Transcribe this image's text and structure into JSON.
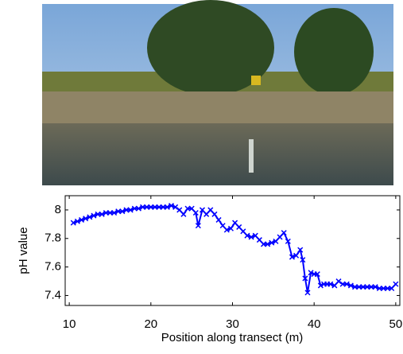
{
  "chart_data": {
    "type": "line",
    "xlabel": "Position along transect (m)",
    "ylabel": "pH value",
    "x": [
      10.5,
      11,
      11.5,
      12,
      12.5,
      13,
      13.5,
      14,
      14.5,
      15,
      15.5,
      16,
      16.5,
      17,
      17.5,
      18,
      18.5,
      19,
      19.5,
      20,
      20.5,
      21,
      21.5,
      22,
      22.5,
      23,
      23.5,
      24,
      24.5,
      25,
      25.5,
      25.8,
      26.3,
      26.8,
      27.3,
      27.8,
      28.3,
      28.8,
      29.3,
      29.8,
      30.3,
      30.8,
      31.3,
      31.8,
      32.3,
      32.8,
      33.3,
      33.8,
      34.3,
      34.8,
      35.3,
      35.8,
      36.3,
      36.8,
      37.3,
      37.8,
      38.3,
      38.6,
      38.9,
      39.2,
      39.6,
      40,
      40.4,
      40.8,
      41.2,
      41.6,
      42,
      42.5,
      43,
      43.5,
      44,
      44.5,
      45,
      45.5,
      46,
      46.5,
      47,
      47.5,
      48,
      48.5,
      49,
      49.5,
      50
    ],
    "values": [
      7.91,
      7.92,
      7.93,
      7.94,
      7.95,
      7.96,
      7.97,
      7.97,
      7.98,
      7.98,
      7.98,
      7.99,
      7.99,
      8.0,
      8.0,
      8.01,
      8.01,
      8.02,
      8.02,
      8.02,
      8.02,
      8.02,
      8.02,
      8.02,
      8.03,
      8.02,
      8.0,
      7.97,
      8.01,
      8.01,
      7.98,
      7.89,
      8.0,
      7.97,
      8.0,
      7.97,
      7.93,
      7.89,
      7.86,
      7.87,
      7.91,
      7.88,
      7.85,
      7.82,
      7.81,
      7.82,
      7.79,
      7.76,
      7.76,
      7.77,
      7.78,
      7.81,
      7.84,
      7.78,
      7.67,
      7.68,
      7.72,
      7.65,
      7.52,
      7.42,
      7.56,
      7.55,
      7.55,
      7.47,
      7.48,
      7.48,
      7.48,
      7.47,
      7.5,
      7.48,
      7.48,
      7.47,
      7.46,
      7.46,
      7.46,
      7.46,
      7.46,
      7.46,
      7.45,
      7.45,
      7.45,
      7.45,
      7.48
    ],
    "color": "#0000ff",
    "marker": "x",
    "xlim": [
      9.5,
      50.5
    ],
    "xticks": [
      10,
      20,
      30,
      40,
      50
    ],
    "ylim": [
      7.33,
      8.1
    ],
    "yticks": [
      7.4,
      7.6,
      7.8,
      8
    ]
  }
}
